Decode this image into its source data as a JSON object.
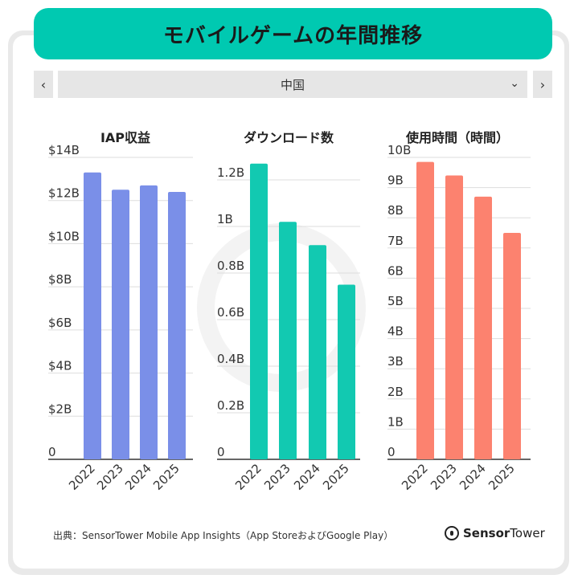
{
  "title": "モバイルゲームの年間推移",
  "region": {
    "selected": "中国",
    "prev_icon": "‹",
    "next_icon": "›"
  },
  "source": "出典：SensorTower Mobile App Insights（App StoreおよびGoogle Play）",
  "brand": {
    "part1": "Sensor",
    "part2": "Tower"
  },
  "colors": {
    "accent": "#00c9b1",
    "iap": "#7a8fe8",
    "downloads": "#12c9b1",
    "usage": "#fc826f"
  },
  "chart_data": [
    {
      "type": "bar",
      "title": "IAP収益",
      "categories": [
        "2022",
        "2023",
        "2024",
        "2025"
      ],
      "values": [
        13.3,
        12.5,
        12.7,
        12.4
      ],
      "unit": "$B",
      "ylim": [
        0,
        14
      ],
      "yticks": [
        0,
        2,
        4,
        6,
        8,
        10,
        12,
        14
      ],
      "ytick_labels": [
        "0",
        "$2B",
        "$4B",
        "$6B",
        "$8B",
        "$10B",
        "$12B",
        "$14B"
      ]
    },
    {
      "type": "bar",
      "title": "ダウンロード数",
      "categories": [
        "2022",
        "2023",
        "2024",
        "2025"
      ],
      "values": [
        1.27,
        1.02,
        0.92,
        0.75
      ],
      "unit": "B",
      "ylim": [
        0,
        1.3
      ],
      "yticks": [
        0,
        0.2,
        0.4,
        0.6,
        0.8,
        1.0,
        1.2
      ],
      "ytick_labels": [
        "0",
        "0.2B",
        "0.4B",
        "0.6B",
        "0.8B",
        "1B",
        "1.2B"
      ]
    },
    {
      "type": "bar",
      "title": "使用時間（時間）",
      "categories": [
        "2022",
        "2023",
        "2024",
        "2025"
      ],
      "values": [
        9.85,
        9.4,
        8.7,
        7.5
      ],
      "unit": "B",
      "ylim": [
        0,
        10
      ],
      "yticks": [
        0,
        1,
        2,
        3,
        4,
        5,
        6,
        7,
        8,
        9,
        10
      ],
      "ytick_labels": [
        "0",
        "1B",
        "2B",
        "3B",
        "4B",
        "5B",
        "6B",
        "7B",
        "8B",
        "9B",
        "10B"
      ]
    }
  ]
}
